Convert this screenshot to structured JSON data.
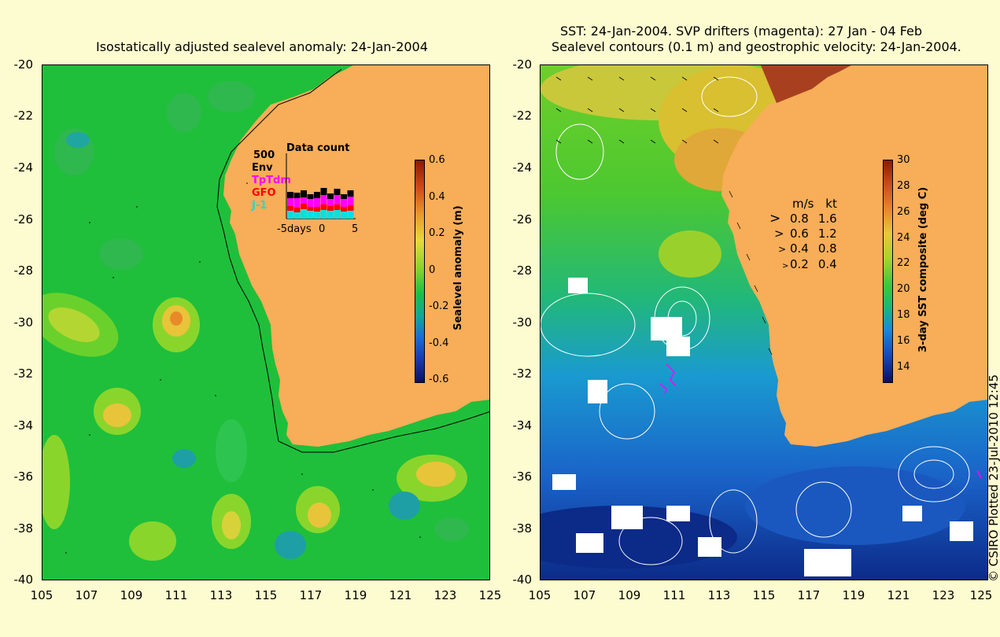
{
  "left_panel": {
    "title": "Isostatically adjusted sealevel anomaly: 24-Jan-2004",
    "y_ticks": [
      "-20",
      "-22",
      "-24",
      "-26",
      "-28",
      "-30",
      "-32",
      "-34",
      "-36",
      "-38",
      "-40"
    ],
    "x_ticks": [
      "105",
      "107",
      "109",
      "111",
      "113",
      "115",
      "117",
      "119",
      "121",
      "123",
      "125"
    ],
    "colorbar": {
      "label": "Sealevel anomaly (m)",
      "ticks": [
        "0.6",
        "0.4",
        "0.2",
        "0",
        "-0.2",
        "-0.4",
        "-0.6"
      ]
    },
    "data_count": {
      "title": "Data count",
      "max_label": "500",
      "series": [
        "Env",
        "TpTdm",
        "GFO",
        "J-1"
      ],
      "series_colors": [
        "#000000",
        "#ff00ff",
        "#ff0000",
        "#00e0e0"
      ],
      "x_labels": [
        "-5days",
        "0",
        "5"
      ]
    }
  },
  "right_panel": {
    "title_line1": "SST: 24-Jan-2004. SVP drifters (magenta): 27 Jan - 04 Feb",
    "title_line2": "Sealevel contours (0.1 m) and geostrophic velocity: 24-Jan-2004.",
    "y_ticks": [
      "-20",
      "-22",
      "-24",
      "-26",
      "-28",
      "-30",
      "-32",
      "-34",
      "-36",
      "-38",
      "-40"
    ],
    "x_ticks": [
      "105",
      "107",
      "109",
      "111",
      "113",
      "115",
      "117",
      "119",
      "121",
      "123",
      "125"
    ],
    "colorbar": {
      "label": "3-day SST composite (deg C)",
      "ticks": [
        "30",
        "28",
        "26",
        "24",
        "22",
        "20",
        "18",
        "16",
        "14"
      ]
    },
    "velocity_legend": {
      "header_ms": "m/s",
      "header_kt": "kt",
      "rows": [
        {
          "ms": "0.8",
          "kt": "1.6"
        },
        {
          "ms": "0.6",
          "kt": "1.2"
        },
        {
          "ms": "0.4",
          "kt": "0.8"
        },
        {
          "ms": "0.2",
          "kt": "0.4"
        }
      ]
    }
  },
  "credit": "© CSIRO Plotted 23-Jul-2010 12:45",
  "colors": {
    "land": "#f8ad58",
    "background": "#fdfbd0",
    "ssh_base": "#1ec23a"
  }
}
